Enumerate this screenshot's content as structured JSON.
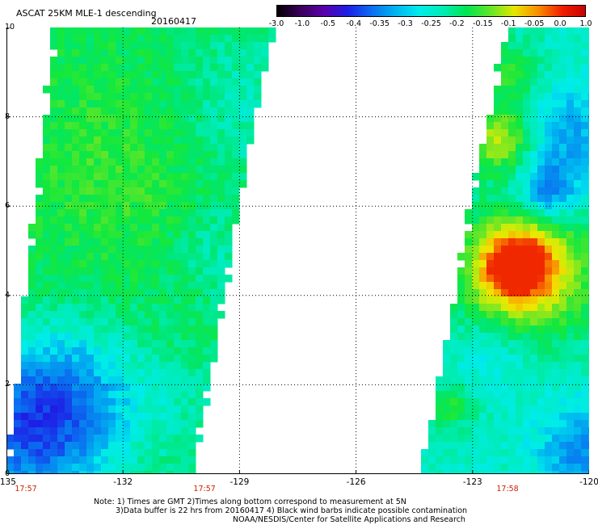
{
  "header": {
    "title": "ASCAT 25KM MLE-1 descending",
    "date": "20160417"
  },
  "colorbar": {
    "labels": [
      "-3.0",
      "-1.0",
      "-0.5",
      "-0.4",
      "-0.35",
      "-0.3",
      "-0.25",
      "-0.2",
      "-0.15",
      "-0.1",
      "-0.05",
      "0.0",
      "1.0"
    ],
    "colors": [
      "#000000",
      "#3a005a",
      "#5a00aa",
      "#1e1ee6",
      "#0a6ef0",
      "#00b4f0",
      "#00ecec",
      "#00ecb4",
      "#00e650",
      "#64e628",
      "#e6e600",
      "#fa8c00",
      "#f01e00",
      "#c80000"
    ]
  },
  "map": {
    "x_ticks": [
      "-135",
      "-132",
      "-129",
      "-126",
      "-123",
      "-120"
    ],
    "y_ticks": [
      "0",
      "2",
      "4",
      "6",
      "8",
      "10"
    ],
    "lon_range": [
      -135,
      -120
    ],
    "lat_range": [
      0,
      10
    ],
    "times": [
      {
        "label": "17:57",
        "lon": -134.5
      },
      {
        "label": "17:57",
        "lon": -129.9
      },
      {
        "label": "17:58",
        "lon": -122.1
      }
    ]
  },
  "notes": {
    "line1": "Note: 1) Times are GMT 2)Times along bottom correspond to measurement at 5N",
    "line2": "3)Data buffer is 22 hrs from 20160417 4) Black wind barbs indicate possible contamination",
    "line3": "NOAA/NESDIS/Center for Satellite Applications and Research"
  },
  "legend_colors": {
    "grid": "#000000",
    "time_labels": "#cc2200"
  }
}
